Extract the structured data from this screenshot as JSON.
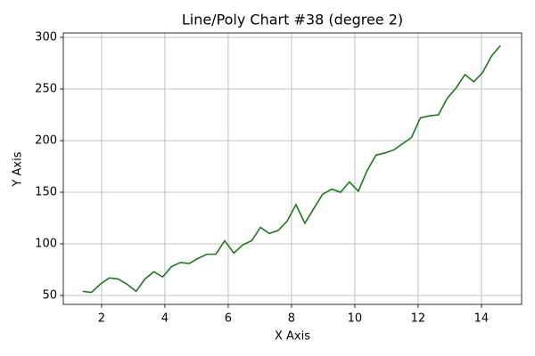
{
  "chart_data": {
    "type": "line",
    "title": "Line/Poly Chart #38 (degree 2)",
    "x_label": "X Axis",
    "y_label": "Y Axis",
    "x": [
      1.4,
      1.68,
      1.96,
      2.24,
      2.52,
      2.8,
      3.09,
      3.37,
      3.65,
      3.93,
      4.21,
      4.49,
      4.77,
      5.05,
      5.33,
      5.61,
      5.89,
      6.18,
      6.46,
      6.74,
      7.02,
      7.3,
      7.58,
      7.86,
      8.14,
      8.42,
      8.7,
      8.98,
      9.27,
      9.55,
      9.83,
      10.11,
      10.39,
      10.67,
      10.95,
      11.23,
      11.51,
      11.79,
      12.07,
      12.36,
      12.64,
      12.92,
      13.2,
      13.48,
      13.76,
      14.04,
      14.32,
      14.6
    ],
    "series": [
      {
        "color": "#1f771f",
        "values": [
          54,
          53,
          61,
          67,
          66,
          61,
          54,
          66,
          73,
          68,
          78,
          82,
          81,
          86,
          90,
          90,
          103,
          91,
          99,
          103,
          116,
          110,
          113,
          122,
          138,
          120,
          134,
          148,
          153,
          150,
          160,
          151,
          171,
          186,
          188,
          191,
          197,
          203,
          222,
          224,
          225,
          241,
          251,
          264,
          257,
          266,
          282,
          292
        ]
      }
    ],
    "xlim": [
      0.79,
      15.27
    ],
    "ylim": [
      41.4,
      304.3
    ],
    "xticks": [
      2,
      4,
      6,
      8,
      10,
      12,
      14
    ],
    "yticks": [
      50,
      100,
      150,
      200,
      250,
      300
    ],
    "grid": true
  }
}
